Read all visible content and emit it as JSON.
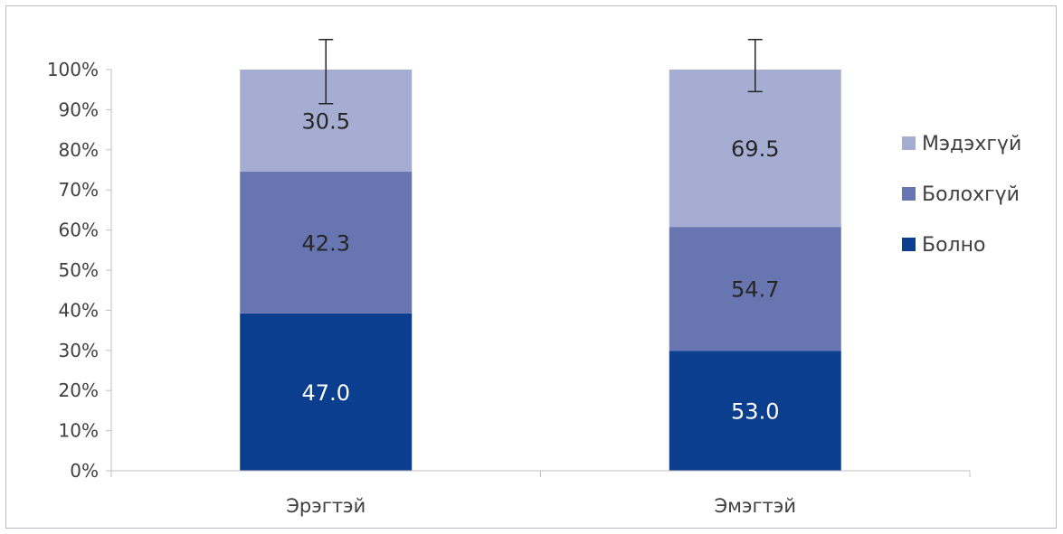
{
  "chart_data": {
    "type": "bar",
    "stacked": true,
    "normalized": true,
    "categories": [
      "Эрэгтэй",
      "Эмэгтэй"
    ],
    "series": [
      {
        "name": "Болно",
        "color": "#0b3e8e",
        "values": [
          47.0,
          53.0
        ],
        "labels": [
          "47.0",
          "53.0"
        ],
        "label_color": "#ffffff"
      },
      {
        "name": "Болохгүй",
        "color": "#6775b0",
        "values": [
          42.3,
          54.7
        ],
        "labels": [
          "42.3",
          "54.7"
        ],
        "label_color": "#262626"
      },
      {
        "name": "Мэдэхгүй",
        "color": "#a6add3",
        "values": [
          30.5,
          69.5
        ],
        "labels": [
          "30.5",
          "69.5"
        ],
        "label_color": "#262626"
      }
    ],
    "error_bars": [
      {
        "category": "Эрэгтэй",
        "low_pct": 91.5,
        "high_pct": 107.5
      },
      {
        "category": "Эмэгтэй",
        "low_pct": 94.5,
        "high_pct": 107.5
      }
    ],
    "y_ticks": [
      "0%",
      "10%",
      "20%",
      "30%",
      "40%",
      "50%",
      "60%",
      "70%",
      "80%",
      "90%",
      "100%"
    ],
    "ylim": [
      0,
      100
    ],
    "legend_placement": "right",
    "legend_order": [
      "Мэдэхгүй",
      "Болохгүй",
      "Болно"
    ],
    "grid": false
  }
}
